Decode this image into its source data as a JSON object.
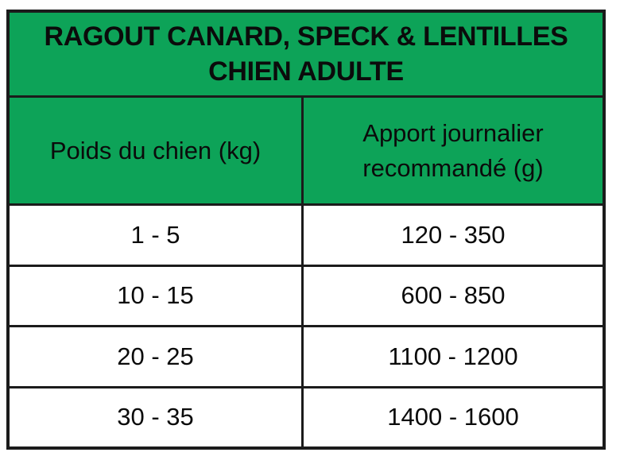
{
  "table": {
    "title_line1": "RAGOUT CANARD, SPECK & LENTILLES",
    "title_line2": "CHIEN ADULTE",
    "columns": [
      {
        "label": "Poids du chien (kg)"
      },
      {
        "label": "Apport journalier recommandé (g)"
      }
    ],
    "rows": [
      {
        "poids": "1 - 5",
        "apport": "120 - 350"
      },
      {
        "poids": "10 - 15",
        "apport": "600 - 850"
      },
      {
        "poids": "20 - 25",
        "apport": "1100 - 1200"
      },
      {
        "poids": "30 - 35",
        "apport": "1400 - 1600"
      }
    ]
  },
  "colors": {
    "header_green": "#0da358",
    "border": "#1b1b1b",
    "text": "#0b0b0b",
    "background": "#ffffff"
  },
  "chart_data": {
    "type": "table",
    "title": "RAGOUT CANARD, SPECK & LENTILLES CHIEN ADULTE",
    "columns": [
      "Poids du chien (kg)",
      "Apport journalier recommandé (g)"
    ],
    "rows": [
      [
        "1 - 5",
        "120 - 350"
      ],
      [
        "10 - 15",
        "600 - 850"
      ],
      [
        "20 - 25",
        "1100 - 1200"
      ],
      [
        "30 - 35",
        "1400 - 1600"
      ]
    ],
    "notes": "Feeding guide table: recommended daily food amount (g) by adult dog weight (kg)."
  }
}
